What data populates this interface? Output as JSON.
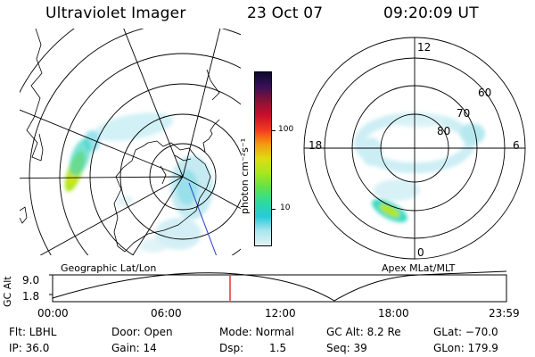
{
  "header": {
    "instrument": "Ultraviolet Imager",
    "date": "23 Oct 07",
    "time": "09:20:09 UT"
  },
  "geo_panel": {
    "caption": "Geographic Lat/Lon"
  },
  "apex_panel": {
    "caption": "Apex MLat/MLT",
    "mlt_labels": [
      "12",
      "18",
      "6",
      "0"
    ],
    "mlat_labels": [
      "60",
      "70",
      "80"
    ]
  },
  "colorbar": {
    "unit_label": "photon cm⁻²s⁻¹",
    "ticks": [
      "100",
      "10"
    ],
    "colors": [
      "#0b0b2e",
      "#3a0f58",
      "#8a1236",
      "#c8102b",
      "#f23b1c",
      "#f59b12",
      "#dedd12",
      "#a7e61e",
      "#5de34a",
      "#2ed9a0",
      "#2bc9d9",
      "#a9e7ef",
      "#e3f1f4"
    ]
  },
  "altitude_plot": {
    "ylabel": "GC Alt",
    "yticks": [
      "9.0",
      "1.8"
    ],
    "xticks": [
      "00:00",
      "06:00",
      "12:00",
      "18:00",
      "23:59"
    ],
    "current_marker_color": "#e00000"
  },
  "info": {
    "flt": "Flt: LBHL",
    "ip": "IP: 36.0",
    "door": "Door: Open",
    "gain": "Gain: 14",
    "mode": "Mode: Normal",
    "dsp_label": "Dsp:",
    "dsp_value": "1.5",
    "gc_alt": "GC Alt: 8.2 Re",
    "seq": "Seq: 39",
    "glat": "GLat: −70.0",
    "glon": "GLon: 179.9"
  }
}
